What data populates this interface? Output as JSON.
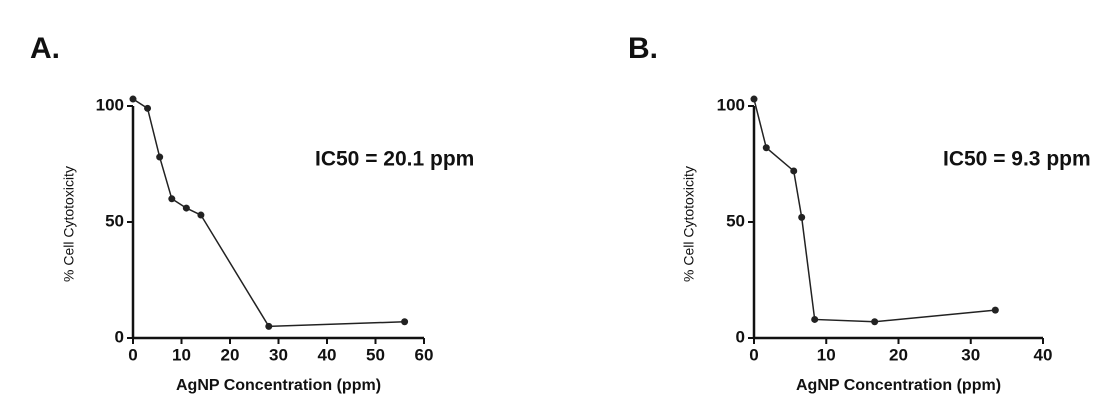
{
  "chart_data": [
    {
      "type": "line",
      "panel_label": "A.",
      "annotation": "IC50 = 20.1 ppm",
      "x_label": "AgNP Concentration (ppm)",
      "y_label": "% Cell Cytotoxicity",
      "x": [
        0,
        3,
        5.5,
        8,
        11,
        14,
        28,
        56
      ],
      "series": [
        {
          "color": "#222222",
          "values": [
            103,
            99,
            78,
            60,
            56,
            53,
            5,
            7
          ]
        }
      ],
      "xlim": [
        0,
        60
      ],
      "xticks": [
        0,
        10,
        20,
        30,
        40,
        50,
        60
      ],
      "ylim": [
        0,
        100
      ],
      "yticks": [
        0,
        50,
        100
      ]
    },
    {
      "type": "line",
      "panel_label": "B.",
      "annotation": "IC50 = 9.3 ppm",
      "x_label": "AgNP Concentration (ppm)",
      "y_label": "% Cell Cytotoxicity",
      "x": [
        0,
        1.7,
        5.5,
        6.6,
        8.4,
        16.7,
        33.4
      ],
      "series": [
        {
          "color": "#222222",
          "values": [
            103,
            82,
            72,
            52,
            8,
            7,
            12
          ]
        }
      ],
      "xlim": [
        0,
        40
      ],
      "xticks": [
        0,
        10,
        20,
        30,
        40
      ],
      "ylim": [
        0,
        100
      ],
      "yticks": [
        0,
        50,
        100
      ]
    }
  ]
}
